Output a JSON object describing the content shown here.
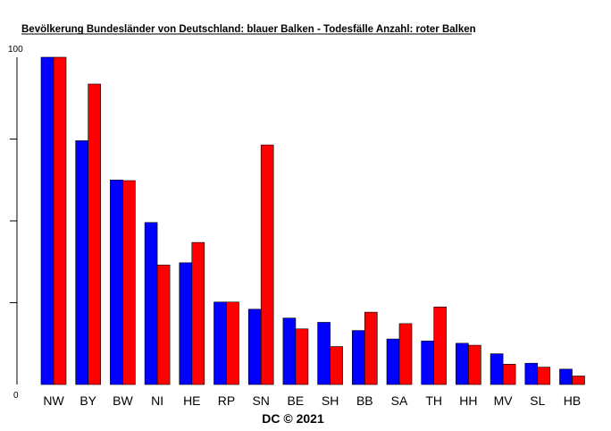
{
  "chart_data": {
    "type": "bar",
    "title": "Bevölkerung Bundesländer von Deutschland: blauer Balken - Todesfälle Anzahl: roter Balken",
    "credit": "DC © 2021",
    "categories": [
      "NW",
      "BY",
      "BW",
      "NI",
      "HE",
      "RP",
      "SN",
      "BE",
      "SH",
      "BB",
      "SA",
      "TH",
      "HH",
      "MV",
      "SL",
      "HB"
    ],
    "series": [
      {
        "color": "#0000ff",
        "values": [
          100,
          74.5,
          62.5,
          49.5,
          37.2,
          25.2,
          23,
          20.3,
          19,
          16.5,
          13.9,
          13.3,
          12.6,
          9.4,
          6.5,
          4.7
        ]
      },
      {
        "color": "#ff0000",
        "values": [
          100,
          91.8,
          62.3,
          36.5,
          43.4,
          25.2,
          73.2,
          17,
          11.6,
          22.1,
          18.6,
          23.7,
          12,
          6.2,
          5.3,
          2.6
        ]
      }
    ],
    "ylim": [
      0,
      100
    ],
    "ytick_labels": [
      "100",
      "0"
    ],
    "ytick_marks": [
      25,
      50,
      75
    ],
    "grid": false,
    "legend": "none"
  }
}
